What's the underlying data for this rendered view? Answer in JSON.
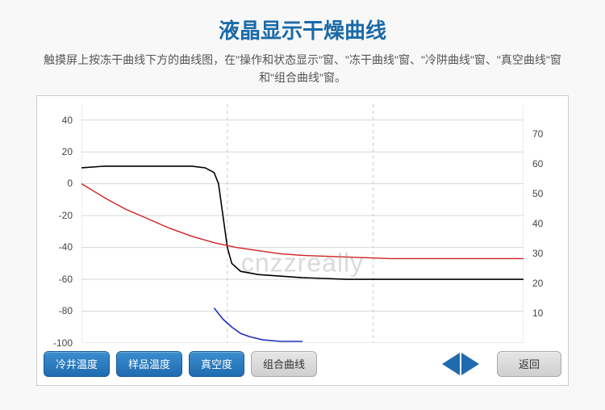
{
  "header": {
    "title": "液晶显示干燥曲线",
    "title_color": "#1a6aa8",
    "subtitle": "触摸屏上按冻干曲线下方的曲线图，在\"操作和状态显示\"窗、\"冻干曲线\"窗、\"冷阱曲线\"窗、\"真空曲线\"窗和\"组合曲线\"窗。"
  },
  "watermark": "cnzzreally",
  "chart": {
    "type": "line",
    "background_color": "#ffffff",
    "grid_color": "#d8d8d8",
    "grid_dashed_color": "#c8c8c8",
    "left_axis": {
      "ylim": [
        -100,
        50
      ],
      "ticks": [
        40,
        20,
        0,
        -20,
        -40,
        -60,
        -80,
        -100
      ],
      "fontsize": 12,
      "color": "#444444"
    },
    "right_axis": {
      "ylim": [
        0,
        80
      ],
      "ticks": [
        70,
        60,
        50,
        40,
        30,
        20,
        10
      ],
      "fontsize": 12,
      "color": "#444444"
    },
    "x_domain": [
      0,
      100
    ],
    "x_dashed_lines": [
      33,
      66
    ],
    "series": [
      {
        "name": "cold_trap",
        "color": "#000000",
        "width": 1.6,
        "axis": "left",
        "points": [
          [
            0,
            10
          ],
          [
            5,
            11
          ],
          [
            10,
            11
          ],
          [
            15,
            11
          ],
          [
            20,
            11
          ],
          [
            25,
            11
          ],
          [
            28,
            10
          ],
          [
            30,
            7
          ],
          [
            31,
            0
          ],
          [
            32,
            -20
          ],
          [
            33,
            -40
          ],
          [
            34,
            -50
          ],
          [
            36,
            -55
          ],
          [
            40,
            -57
          ],
          [
            50,
            -59
          ],
          [
            60,
            -60
          ],
          [
            80,
            -60
          ],
          [
            100,
            -60
          ]
        ]
      },
      {
        "name": "sample_temp",
        "color": "#d02020",
        "width": 1.4,
        "axis": "left",
        "points": [
          [
            0,
            0
          ],
          [
            3,
            -5
          ],
          [
            6,
            -10
          ],
          [
            10,
            -16
          ],
          [
            15,
            -22
          ],
          [
            20,
            -28
          ],
          [
            25,
            -33
          ],
          [
            30,
            -37
          ],
          [
            35,
            -40
          ],
          [
            40,
            -42
          ],
          [
            45,
            -44
          ],
          [
            50,
            -45
          ],
          [
            60,
            -46
          ],
          [
            70,
            -47
          ],
          [
            80,
            -47
          ],
          [
            100,
            -47
          ]
        ]
      },
      {
        "name": "vacuum",
        "color": "#2030c0",
        "width": 1.6,
        "axis": "left",
        "points": [
          [
            30,
            -78
          ],
          [
            32,
            -85
          ],
          [
            34,
            -90
          ],
          [
            36,
            -94
          ],
          [
            38,
            -96
          ],
          [
            41,
            -98
          ],
          [
            45,
            -99
          ],
          [
            50,
            -99
          ]
        ]
      }
    ]
  },
  "buttons": {
    "cold_trap": "冷井温度",
    "sample_temp": "样品温度",
    "vacuum": "真空度",
    "combo": "组合曲线",
    "back": "返回"
  },
  "colors": {
    "btn_blue_top": "#3b8ed0",
    "btn_blue_bottom": "#1f6bb0",
    "btn_gray_top": "#e6e6e6",
    "btn_gray_bottom": "#cfcfcf",
    "arrow": "#1f6bb0"
  }
}
